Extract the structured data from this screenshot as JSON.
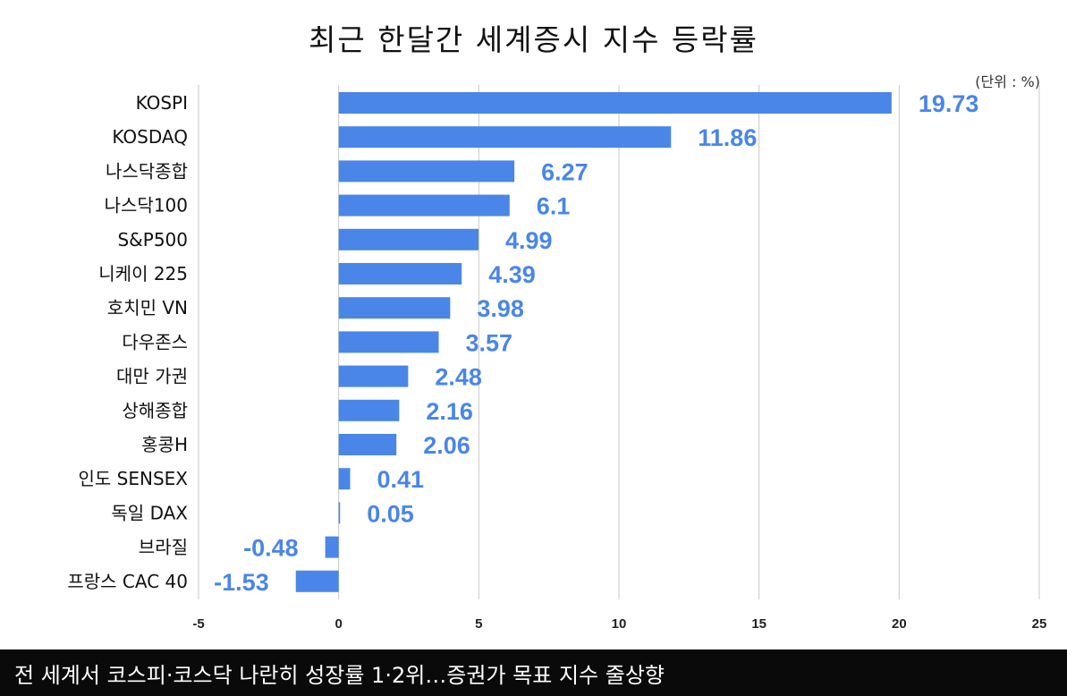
{
  "chart_data": {
    "type": "bar",
    "orientation": "horizontal",
    "title": "최근 한달간 세계증시 지수 등락률",
    "unit_label": "(단위 : %)",
    "categories": [
      "KOSPI",
      "KOSDAQ",
      "나스닥종합",
      "나스닥100",
      "S&P500",
      "니케이 225",
      "호치민 VN",
      "다우존스",
      "대만 가권",
      "상해종합",
      "홍콩H",
      "인도 SENSEX",
      "독일 DAX",
      "브라질",
      "프랑스 CAC 40"
    ],
    "values": [
      19.73,
      11.86,
      6.27,
      6.1,
      4.99,
      4.39,
      3.98,
      3.57,
      2.48,
      2.16,
      2.06,
      0.41,
      0.05,
      -0.48,
      -1.53
    ],
    "value_labels": [
      "19.73",
      "11.86",
      "6.27",
      "6.1",
      "4.99",
      "4.39",
      "3.98",
      "3.57",
      "2.48",
      "2.16",
      "2.06",
      "0.41",
      "0.05",
      "-0.48",
      "-1.53"
    ],
    "xlim": [
      -5,
      25
    ],
    "x_ticks": [
      -5,
      0,
      5,
      10,
      15,
      20,
      25
    ],
    "x_tick_labels": [
      "-5",
      "0",
      "5",
      "10",
      "15",
      "20",
      "25"
    ],
    "grid": "vertical",
    "bar_color": "#4a86e8",
    "label_color": "#4a86e8"
  },
  "caption": "전 세계서 코스피·코스닥 나란히 성장률 1·2위…증권가 목표 지수 줄상향"
}
